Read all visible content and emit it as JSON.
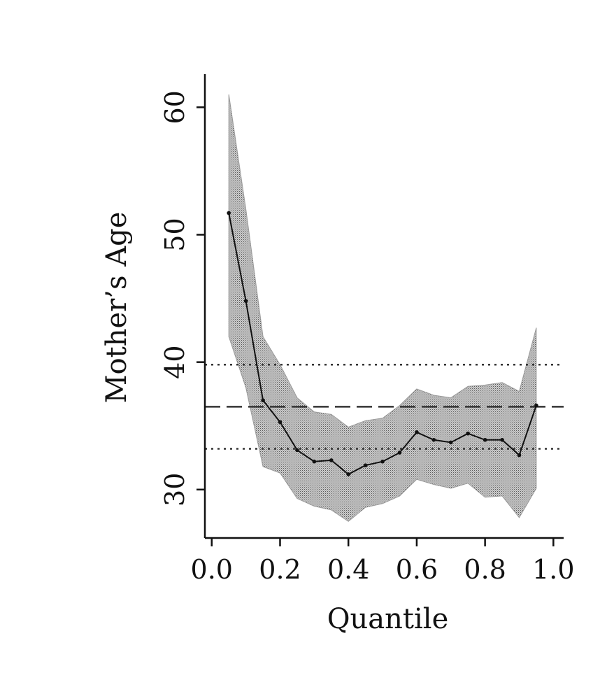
{
  "chart_data": {
    "type": "line",
    "title": "",
    "xlabel": "Quantile",
    "ylabel": "Mother’s Age",
    "xlim": [
      -0.02,
      1.03
    ],
    "ylim": [
      26.2,
      62.6
    ],
    "xticks": [
      0.0,
      0.2,
      0.4,
      0.6,
      0.8,
      1.0
    ],
    "xtick_labels": [
      "0.0",
      "0.2",
      "0.4",
      "0.6",
      "0.8",
      "1.0"
    ],
    "yticks": [
      30,
      40,
      50,
      60
    ],
    "ytick_labels": [
      "30",
      "40",
      "50",
      "60"
    ],
    "grid": false,
    "series": [
      {
        "name": "quantile estimate",
        "x": [
          0.05,
          0.1,
          0.15,
          0.2,
          0.25,
          0.3,
          0.35,
          0.4,
          0.45,
          0.5,
          0.55,
          0.6,
          0.65,
          0.7,
          0.75,
          0.8,
          0.85,
          0.9,
          0.95
        ],
        "values": [
          51.7,
          44.8,
          37.0,
          35.3,
          33.1,
          32.2,
          32.3,
          31.2,
          31.9,
          32.2,
          32.9,
          34.5,
          33.9,
          33.7,
          34.4,
          33.9,
          33.9,
          32.7,
          36.6
        ]
      }
    ],
    "confidence_band": {
      "name": "confidence band",
      "x": [
        0.05,
        0.1,
        0.15,
        0.2,
        0.25,
        0.3,
        0.35,
        0.4,
        0.45,
        0.5,
        0.55,
        0.6,
        0.65,
        0.7,
        0.75,
        0.8,
        0.85,
        0.9,
        0.95
      ],
      "upper": [
        61.0,
        52.0,
        42.0,
        39.8,
        37.2,
        36.1,
        35.9,
        34.9,
        35.4,
        35.6,
        36.6,
        37.9,
        37.4,
        37.2,
        38.1,
        38.2,
        38.4,
        37.7,
        42.7
      ],
      "lower": [
        42.0,
        38.0,
        31.8,
        31.3,
        29.3,
        28.7,
        28.4,
        27.5,
        28.6,
        28.9,
        29.5,
        30.8,
        30.4,
        30.1,
        30.5,
        29.4,
        29.5,
        27.8,
        30.1
      ]
    },
    "reference_lines": [
      {
        "name": "upper reference",
        "y": 39.8,
        "style": "dotted"
      },
      {
        "name": "mean reference",
        "y": 36.5,
        "style": "dashed"
      },
      {
        "name": "lower reference",
        "y": 33.2,
        "style": "dotted"
      }
    ],
    "colors": {
      "line": "#111111",
      "band": "#b4b4b4",
      "axis": "#111111"
    }
  }
}
